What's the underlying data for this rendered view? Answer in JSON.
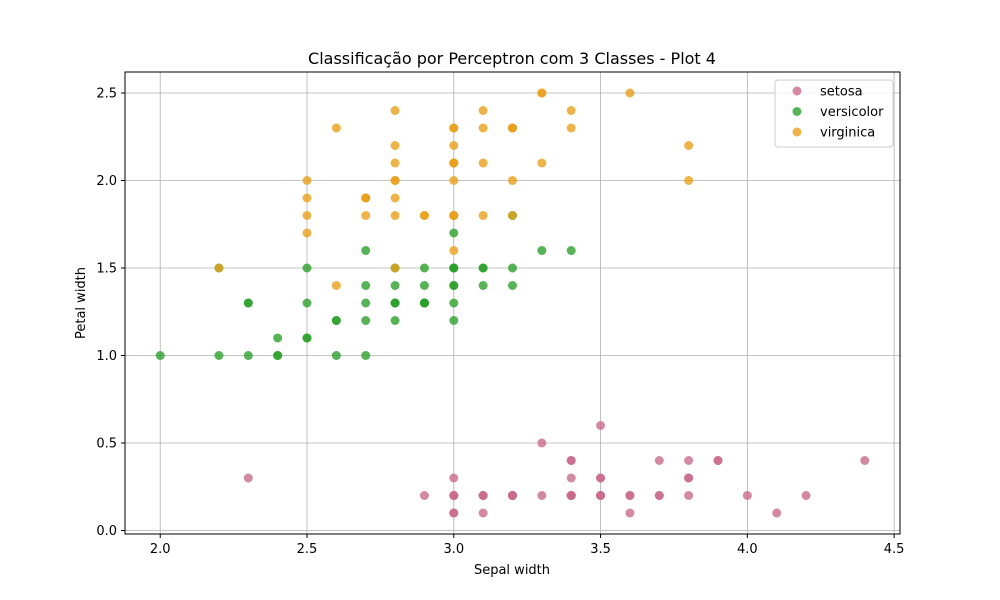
{
  "chart_data": {
    "type": "scatter",
    "title": "Classificação por Perceptron com 3 Classes - Plot 4",
    "xlabel": "Sepal width",
    "ylabel": "Petal width",
    "xlim": [
      1.88,
      4.52
    ],
    "ylim": [
      -0.02,
      2.62
    ],
    "xticks": [
      "2.0",
      "2.5",
      "3.0",
      "3.5",
      "4.0",
      "4.5"
    ],
    "yticks": [
      "0.0",
      "0.5",
      "1.0",
      "1.5",
      "2.0",
      "2.5"
    ],
    "grid": true,
    "legend_position": "top-right",
    "series": [
      {
        "name": "setosa",
        "color": "#c96b8c",
        "points": [
          [
            3.5,
            0.2
          ],
          [
            3.0,
            0.2
          ],
          [
            3.2,
            0.2
          ],
          [
            3.1,
            0.2
          ],
          [
            3.6,
            0.2
          ],
          [
            3.9,
            0.4
          ],
          [
            3.4,
            0.3
          ],
          [
            3.4,
            0.2
          ],
          [
            2.9,
            0.2
          ],
          [
            3.1,
            0.1
          ],
          [
            3.7,
            0.2
          ],
          [
            3.4,
            0.2
          ],
          [
            3.0,
            0.1
          ],
          [
            3.0,
            0.1
          ],
          [
            4.0,
            0.2
          ],
          [
            4.4,
            0.4
          ],
          [
            3.9,
            0.4
          ],
          [
            3.5,
            0.3
          ],
          [
            3.8,
            0.3
          ],
          [
            3.8,
            0.3
          ],
          [
            3.4,
            0.2
          ],
          [
            3.7,
            0.4
          ],
          [
            3.6,
            0.2
          ],
          [
            3.3,
            0.5
          ],
          [
            3.4,
            0.2
          ],
          [
            3.0,
            0.2
          ],
          [
            3.4,
            0.4
          ],
          [
            3.5,
            0.2
          ],
          [
            3.4,
            0.2
          ],
          [
            3.2,
            0.2
          ],
          [
            3.1,
            0.2
          ],
          [
            3.4,
            0.4
          ],
          [
            4.1,
            0.1
          ],
          [
            4.2,
            0.2
          ],
          [
            3.1,
            0.2
          ],
          [
            3.2,
            0.2
          ],
          [
            3.5,
            0.2
          ],
          [
            3.6,
            0.1
          ],
          [
            3.0,
            0.2
          ],
          [
            3.4,
            0.2
          ],
          [
            3.5,
            0.3
          ],
          [
            2.3,
            0.3
          ],
          [
            3.2,
            0.2
          ],
          [
            3.5,
            0.6
          ],
          [
            3.8,
            0.4
          ],
          [
            3.0,
            0.3
          ],
          [
            3.8,
            0.2
          ],
          [
            3.2,
            0.2
          ],
          [
            3.7,
            0.2
          ],
          [
            3.3,
            0.2
          ]
        ]
      },
      {
        "name": "versicolor",
        "color": "#2ca02c",
        "points": [
          [
            3.2,
            1.4
          ],
          [
            3.2,
            1.5
          ],
          [
            3.1,
            1.5
          ],
          [
            2.3,
            1.3
          ],
          [
            2.8,
            1.5
          ],
          [
            2.8,
            1.3
          ],
          [
            3.3,
            1.6
          ],
          [
            2.4,
            1.0
          ],
          [
            2.9,
            1.3
          ],
          [
            2.7,
            1.4
          ],
          [
            2.0,
            1.0
          ],
          [
            3.0,
            1.5
          ],
          [
            2.2,
            1.0
          ],
          [
            2.9,
            1.4
          ],
          [
            2.9,
            1.3
          ],
          [
            3.1,
            1.4
          ],
          [
            3.0,
            1.5
          ],
          [
            2.7,
            1.0
          ],
          [
            2.2,
            1.5
          ],
          [
            2.5,
            1.1
          ],
          [
            3.2,
            1.8
          ],
          [
            2.8,
            1.3
          ],
          [
            2.5,
            1.5
          ],
          [
            2.8,
            1.2
          ],
          [
            2.9,
            1.3
          ],
          [
            3.0,
            1.4
          ],
          [
            2.8,
            1.4
          ],
          [
            3.0,
            1.7
          ],
          [
            2.9,
            1.5
          ],
          [
            2.6,
            1.0
          ],
          [
            2.4,
            1.1
          ],
          [
            2.4,
            1.0
          ],
          [
            2.7,
            1.2
          ],
          [
            2.7,
            1.6
          ],
          [
            3.0,
            1.5
          ],
          [
            3.4,
            1.6
          ],
          [
            3.1,
            1.5
          ],
          [
            2.3,
            1.3
          ],
          [
            3.0,
            1.3
          ],
          [
            2.5,
            1.3
          ],
          [
            2.6,
            1.2
          ],
          [
            3.0,
            1.4
          ],
          [
            2.6,
            1.2
          ],
          [
            2.3,
            1.0
          ],
          [
            2.7,
            1.3
          ],
          [
            3.0,
            1.2
          ],
          [
            2.9,
            1.3
          ],
          [
            2.9,
            1.3
          ],
          [
            2.5,
            1.1
          ],
          [
            2.8,
            1.3
          ]
        ]
      },
      {
        "name": "virginica",
        "color": "#e8a01c",
        "points": [
          [
            3.3,
            2.5
          ],
          [
            2.7,
            1.9
          ],
          [
            3.0,
            2.1
          ],
          [
            2.9,
            1.8
          ],
          [
            3.0,
            2.2
          ],
          [
            3.0,
            2.1
          ],
          [
            2.5,
            1.7
          ],
          [
            2.9,
            1.8
          ],
          [
            2.5,
            1.8
          ],
          [
            3.6,
            2.5
          ],
          [
            3.2,
            2.0
          ],
          [
            2.7,
            1.9
          ],
          [
            3.0,
            2.1
          ],
          [
            2.5,
            2.0
          ],
          [
            2.8,
            2.4
          ],
          [
            3.2,
            2.3
          ],
          [
            3.0,
            1.8
          ],
          [
            3.8,
            2.2
          ],
          [
            2.6,
            2.3
          ],
          [
            2.2,
            1.5
          ],
          [
            3.2,
            2.3
          ],
          [
            2.8,
            2.0
          ],
          [
            2.8,
            2.0
          ],
          [
            2.7,
            1.8
          ],
          [
            3.3,
            2.1
          ],
          [
            3.2,
            1.8
          ],
          [
            2.8,
            1.8
          ],
          [
            3.0,
            1.8
          ],
          [
            2.8,
            2.1
          ],
          [
            3.0,
            1.6
          ],
          [
            2.8,
            1.9
          ],
          [
            3.8,
            2.0
          ],
          [
            2.8,
            2.2
          ],
          [
            2.8,
            1.5
          ],
          [
            2.6,
            1.4
          ],
          [
            3.0,
            2.3
          ],
          [
            3.4,
            2.4
          ],
          [
            3.1,
            1.8
          ],
          [
            3.0,
            1.8
          ],
          [
            3.1,
            2.1
          ],
          [
            3.1,
            2.4
          ],
          [
            3.1,
            2.3
          ],
          [
            2.7,
            1.9
          ],
          [
            3.2,
            2.3
          ],
          [
            3.3,
            2.5
          ],
          [
            3.0,
            2.3
          ],
          [
            2.5,
            1.9
          ],
          [
            3.0,
            2.0
          ],
          [
            3.4,
            2.3
          ],
          [
            3.0,
            1.8
          ]
        ]
      }
    ]
  }
}
